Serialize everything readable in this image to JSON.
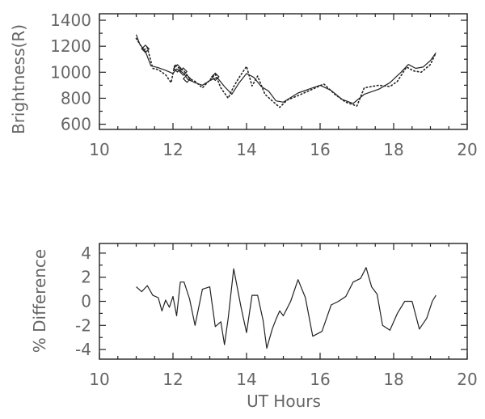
{
  "chart_data": [
    {
      "type": "line",
      "title": "",
      "xlabel": "",
      "ylabel": "Brightness(R)",
      "xlim": [
        10,
        20
      ],
      "ylim": [
        560,
        1450
      ],
      "xticks": [
        "10",
        "12",
        "14",
        "16",
        "18",
        "20"
      ],
      "yticks": [
        "600",
        "800",
        "1000",
        "1200",
        "1400"
      ],
      "grid": false,
      "series": [
        {
          "style": "solid",
          "color": "#222222",
          "x": [
            11.0,
            11.1,
            11.25,
            11.4,
            11.6,
            11.8,
            12.0,
            12.1,
            12.2,
            12.3,
            12.4,
            12.6,
            12.8,
            13.0,
            13.2,
            13.4,
            13.6,
            13.8,
            14.0,
            14.2,
            14.4,
            14.6,
            14.8,
            15.0,
            15.4,
            15.8,
            16.0,
            16.3,
            16.6,
            16.9,
            17.2,
            17.6,
            17.9,
            18.2,
            18.4,
            18.6,
            18.8,
            19.0,
            19.15
          ],
          "values": [
            1290,
            1215,
            1160,
            1050,
            1035,
            1015,
            990,
            1025,
            1010,
            990,
            945,
            920,
            900,
            935,
            960,
            890,
            830,
            920,
            990,
            960,
            890,
            855,
            780,
            770,
            840,
            880,
            900,
            860,
            790,
            760,
            830,
            870,
            920,
            1000,
            1060,
            1030,
            1040,
            1090,
            1150
          ]
        },
        {
          "style": "dotted",
          "color": "#222222",
          "x": [
            11.0,
            11.2,
            11.3,
            11.45,
            11.6,
            11.8,
            11.95,
            12.05,
            12.15,
            12.3,
            12.45,
            12.6,
            12.8,
            13.0,
            13.15,
            13.3,
            13.5,
            13.65,
            13.8,
            14.0,
            14.15,
            14.3,
            14.5,
            14.7,
            14.9,
            15.1,
            15.4,
            15.8,
            16.1,
            16.4,
            16.7,
            17.0,
            17.2,
            17.6,
            17.9,
            18.1,
            18.35,
            18.55,
            18.75,
            19.0,
            19.15
          ],
          "values": [
            1260,
            1170,
            1190,
            1030,
            1020,
            980,
            920,
            1060,
            1035,
            1010,
            950,
            930,
            880,
            940,
            985,
            880,
            800,
            890,
            960,
            1045,
            895,
            970,
            830,
            780,
            730,
            785,
            820,
            870,
            910,
            830,
            770,
            740,
            880,
            900,
            890,
            930,
            1040,
            1010,
            1000,
            1060,
            1150
          ]
        }
      ],
      "markers": [
        {
          "shape": "diamond",
          "x": 11.25,
          "y": 1180
        },
        {
          "shape": "diamond",
          "x": 12.12,
          "y": 1030
        },
        {
          "shape": "diamond",
          "x": 12.28,
          "y": 1005
        },
        {
          "shape": "diamond",
          "x": 12.38,
          "y": 950
        },
        {
          "shape": "diamond",
          "x": 13.15,
          "y": 965
        }
      ]
    },
    {
      "type": "line",
      "title": "",
      "xlabel": "UT Hours",
      "ylabel": "% Difference",
      "xlim": [
        10,
        20
      ],
      "ylim": [
        -4.8,
        4.8
      ],
      "xticks": [
        "10",
        "12",
        "14",
        "16",
        "18",
        "20"
      ],
      "yticks": [
        "-4",
        "-2",
        "0",
        "2",
        "4"
      ],
      "grid": false,
      "series": [
        {
          "style": "solid",
          "color": "#222222",
          "x": [
            11.0,
            11.15,
            11.3,
            11.45,
            11.6,
            11.7,
            11.8,
            11.9,
            12.0,
            12.1,
            12.2,
            12.3,
            12.45,
            12.6,
            12.8,
            13.0,
            13.15,
            13.3,
            13.4,
            13.5,
            13.65,
            13.85,
            14.0,
            14.15,
            14.3,
            14.45,
            14.55,
            14.7,
            14.8,
            14.9,
            15.0,
            15.2,
            15.4,
            15.6,
            15.8,
            16.05,
            16.3,
            16.5,
            16.7,
            16.9,
            17.1,
            17.25,
            17.4,
            17.55,
            17.7,
            17.9,
            18.1,
            18.3,
            18.5,
            18.7,
            18.9,
            19.05,
            19.15
          ],
          "values": [
            1.2,
            0.8,
            1.3,
            0.5,
            0.3,
            -0.8,
            0.1,
            -0.5,
            0.4,
            -1.2,
            1.6,
            1.6,
            0.2,
            -2.0,
            1.0,
            1.2,
            -2.1,
            -1.7,
            -3.6,
            -1.4,
            2.7,
            -0.5,
            -2.6,
            0.5,
            0.5,
            -1.6,
            -3.9,
            -2.3,
            -1.5,
            -0.8,
            -1.2,
            0.0,
            1.8,
            0.3,
            -2.9,
            -2.5,
            -0.3,
            0.0,
            0.4,
            1.6,
            1.9,
            2.8,
            1.2,
            0.6,
            -2.0,
            -2.4,
            -1.0,
            0.0,
            0.0,
            -2.3,
            -1.4,
            0.0,
            0.5
          ]
        }
      ]
    }
  ]
}
